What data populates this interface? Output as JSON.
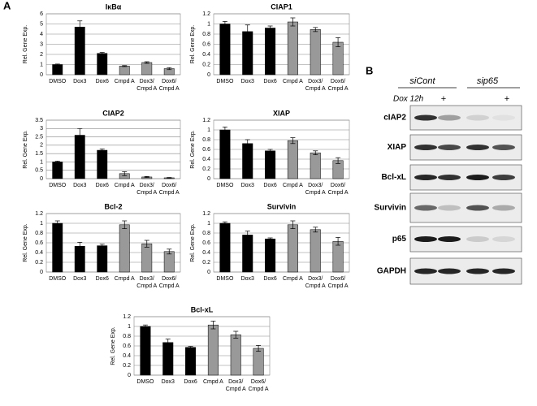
{
  "panel_labels": [
    "A",
    "B"
  ],
  "chart_data": [
    {
      "type": "bar",
      "title": "IκBα",
      "y_label": "Rel. Gene Exp.",
      "categories": [
        "DMSO",
        "Dox3",
        "Dox6",
        "Cmpd A",
        "Dox3/ Cmpd A",
        "Dox6/ Cmpd A"
      ],
      "values": [
        1,
        4.7,
        2.1,
        0.85,
        1.2,
        0.6
      ],
      "errors": [
        0.05,
        0.6,
        0.1,
        0.05,
        0.08,
        0.1
      ],
      "colors": [
        "#000000",
        "#000000",
        "#000000",
        "#999999",
        "#999999",
        "#999999"
      ],
      "ylim": [
        0,
        6
      ],
      "yticks": [
        0,
        1,
        2,
        3,
        4,
        5,
        6
      ],
      "grid": true
    },
    {
      "type": "bar",
      "title": "CIAP1",
      "y_label": "Rel. Gene Exp.",
      "categories": [
        "DMSO",
        "Dox3",
        "Dox6",
        "Cmpd A",
        "Dox3/ Cmpd A",
        "Dox6/ Cmpd A"
      ],
      "values": [
        1,
        0.85,
        0.92,
        1.04,
        0.89,
        0.64
      ],
      "errors": [
        0.05,
        0.13,
        0.04,
        0.08,
        0.04,
        0.09
      ],
      "colors": [
        "#000000",
        "#000000",
        "#000000",
        "#999999",
        "#999999",
        "#999999"
      ],
      "ylim": [
        0,
        1.2
      ],
      "yticks": [
        0,
        0.2,
        0.4,
        0.6,
        0.8,
        1,
        1.2
      ],
      "grid": true
    },
    {
      "type": "bar",
      "title": "CIAP2",
      "y_label": "Rel. Gene Exp.",
      "categories": [
        "DMSO",
        "Dox3",
        "Dox6",
        "Cmpd A",
        "Dox3/ Cmpd A",
        "Dox6/ Cmpd A"
      ],
      "values": [
        1,
        2.6,
        1.7,
        0.3,
        0.1,
        0.05
      ],
      "errors": [
        0.05,
        0.4,
        0.08,
        0.12,
        0.03,
        0.02
      ],
      "colors": [
        "#000000",
        "#000000",
        "#000000",
        "#999999",
        "#999999",
        "#999999"
      ],
      "ylim": [
        0,
        3.5
      ],
      "yticks": [
        0,
        0.5,
        1,
        1.5,
        2,
        2.5,
        3,
        3.5
      ],
      "grid": true
    },
    {
      "type": "bar",
      "title": "XIAP",
      "y_label": "Rel. Gene Exp.",
      "categories": [
        "DMSO",
        "Dox3",
        "Dox6",
        "Cmpd A",
        "Dox3/ Cmpd A",
        "Dox6/ Cmpd A"
      ],
      "values": [
        1,
        0.72,
        0.57,
        0.78,
        0.53,
        0.37
      ],
      "errors": [
        0.06,
        0.08,
        0.03,
        0.06,
        0.04,
        0.06
      ],
      "colors": [
        "#000000",
        "#000000",
        "#000000",
        "#999999",
        "#999999",
        "#999999"
      ],
      "ylim": [
        0,
        1.2
      ],
      "yticks": [
        0,
        0.2,
        0.4,
        0.6,
        0.8,
        1,
        1.2
      ],
      "grid": true
    },
    {
      "type": "bar",
      "title": "Bcl-2",
      "y_label": "Rel. Gene Exp.",
      "categories": [
        "DMSO",
        "Dox3",
        "Dox6",
        "Cmpd A",
        "Dox3/ Cmpd A",
        "Dox6/ Cmpd A"
      ],
      "values": [
        1,
        0.53,
        0.54,
        0.97,
        0.58,
        0.42
      ],
      "errors": [
        0.05,
        0.08,
        0.03,
        0.08,
        0.07,
        0.05
      ],
      "colors": [
        "#000000",
        "#000000",
        "#000000",
        "#999999",
        "#999999",
        "#999999"
      ],
      "ylim": [
        0,
        1.2
      ],
      "yticks": [
        0,
        0.2,
        0.4,
        0.6,
        0.8,
        1,
        1.2
      ],
      "grid": true
    },
    {
      "type": "bar",
      "title": "Survivin",
      "y_label": "Rel. Gene Exp.",
      "categories": [
        "DMSO",
        "Dox3",
        "Dox6",
        "Cmpd A",
        "Dox3/ Cmpd A",
        "Dox6/ Cmpd A"
      ],
      "values": [
        1,
        0.76,
        0.68,
        0.97,
        0.87,
        0.63
      ],
      "errors": [
        0.03,
        0.08,
        0.02,
        0.08,
        0.05,
        0.08
      ],
      "colors": [
        "#000000",
        "#000000",
        "#000000",
        "#999999",
        "#999999",
        "#999999"
      ],
      "ylim": [
        0,
        1.2
      ],
      "yticks": [
        0,
        0.2,
        0.4,
        0.6,
        0.8,
        1,
        1.2
      ],
      "grid": true
    },
    {
      "type": "bar",
      "title": "Bcl-xL",
      "y_label": "Rel. Gene Exp.",
      "categories": [
        "DMSO",
        "Dox3",
        "Dox6",
        "Cmpd A",
        "Dox3/ Cmpd A",
        "Dox6/ Cmpd A"
      ],
      "values": [
        1,
        0.67,
        0.57,
        1.03,
        0.83,
        0.55
      ],
      "errors": [
        0.03,
        0.07,
        0.02,
        0.08,
        0.07,
        0.06
      ],
      "colors": [
        "#000000",
        "#000000",
        "#000000",
        "#999999",
        "#999999",
        "#999999"
      ],
      "ylim": [
        0,
        1.2
      ],
      "yticks": [
        0,
        0.2,
        0.4,
        0.6,
        0.8,
        1,
        1.2
      ],
      "grid": true
    }
  ],
  "blot": {
    "groups": [
      "siCont",
      "sip65"
    ],
    "treatment": "Dox 12h",
    "treatment_marks": [
      "+",
      "+"
    ],
    "rows": [
      "cIAP2",
      "XIAP",
      "Bcl-xL",
      "Survivin",
      "p65",
      "GAPDH"
    ]
  }
}
